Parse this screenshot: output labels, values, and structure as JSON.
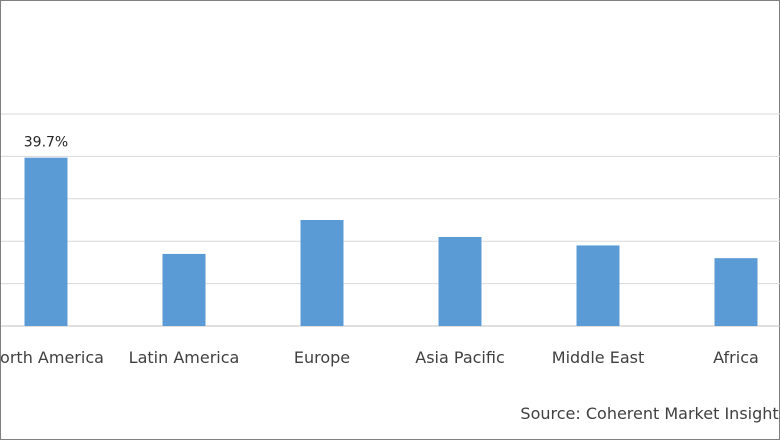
{
  "chart_data": {
    "type": "bar",
    "title": "",
    "xlabel": "",
    "ylabel": "",
    "categories": [
      "North America",
      "Latin America",
      "Europe",
      "Asia Pacific",
      "Middle East",
      "Africa"
    ],
    "values": [
      39.7,
      17.0,
      25.0,
      21.0,
      19.0,
      16.0
    ],
    "value_labels": [
      "39.7%",
      "",
      "",
      "",
      "",
      ""
    ],
    "ylim": [
      0,
      50
    ],
    "grid": true,
    "legend": "none",
    "bar_color": "#5b9bd5",
    "grid_color": "#d9d9d9"
  },
  "source": "Source: Coherent Market Insights"
}
